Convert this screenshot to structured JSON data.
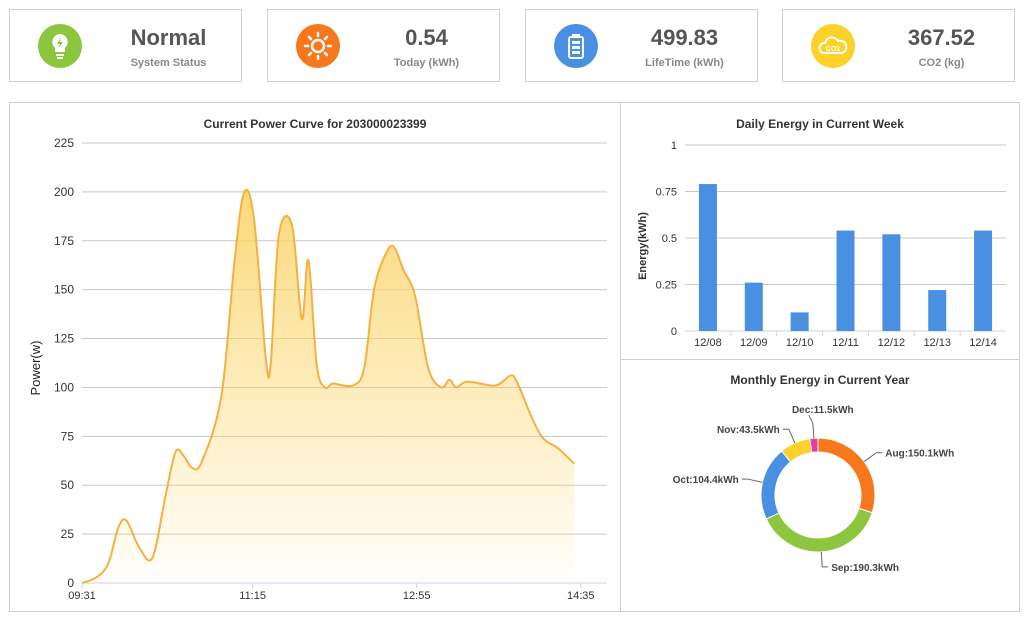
{
  "cards": [
    {
      "value": "Normal",
      "label": "System Status",
      "color": "#8cc63f",
      "icon": "lightbulb-icon"
    },
    {
      "value": "0.54",
      "label": "Today (kWh)",
      "color": "#f7771c",
      "icon": "sun-icon"
    },
    {
      "value": "499.83",
      "label": "LifeTime (kWh)",
      "color": "#4a90e2",
      "icon": "battery-icon"
    },
    {
      "value": "367.52",
      "label": "CO2 (kg)",
      "color": "#fcd12a",
      "icon": "co2-cloud-icon"
    }
  ],
  "power_chart": {
    "type": "area",
    "title": "Current Power Curve for 203000023399",
    "ylabel": "Power(w)",
    "ylim": [
      0,
      225
    ],
    "yticks": [
      0,
      25,
      50,
      75,
      100,
      125,
      150,
      175,
      200,
      225
    ],
    "xticks": [
      "09:31",
      "11:15",
      "12:55",
      "14:35"
    ],
    "xtick_minutes": [
      571,
      675,
      775,
      875
    ],
    "xlim_minutes": [
      571,
      891
    ],
    "color": "#f6b040",
    "points": [
      [
        571,
        0
      ],
      [
        580,
        3
      ],
      [
        587,
        10
      ],
      [
        593,
        28
      ],
      [
        598,
        32
      ],
      [
        606,
        18
      ],
      [
        614,
        13
      ],
      [
        622,
        45
      ],
      [
        628,
        67
      ],
      [
        633,
        65
      ],
      [
        638,
        59
      ],
      [
        644,
        62
      ],
      [
        656,
        96
      ],
      [
        664,
        165
      ],
      [
        670,
        200
      ],
      [
        676,
        185
      ],
      [
        683,
        115
      ],
      [
        686,
        112
      ],
      [
        691,
        178
      ],
      [
        699,
        183
      ],
      [
        705,
        135
      ],
      [
        709,
        165
      ],
      [
        714,
        112
      ],
      [
        719,
        100
      ],
      [
        724,
        102
      ],
      [
        736,
        101
      ],
      [
        743,
        110
      ],
      [
        749,
        150
      ],
      [
        756,
        168
      ],
      [
        761,
        172
      ],
      [
        767,
        160
      ],
      [
        774,
        147
      ],
      [
        782,
        110
      ],
      [
        790,
        100
      ],
      [
        795,
        104
      ],
      [
        799,
        100
      ],
      [
        806,
        103
      ],
      [
        823,
        101
      ],
      [
        832,
        106
      ],
      [
        836,
        103
      ],
      [
        845,
        85
      ],
      [
        852,
        74
      ],
      [
        861,
        69
      ],
      [
        871,
        61
      ]
    ]
  },
  "week_chart": {
    "type": "bar",
    "title": "Daily Energy in Current Week",
    "ylabel": "Energy(kWh)",
    "ylim": [
      0,
      1
    ],
    "yticks": [
      "0",
      "0.25",
      "0.5",
      "0.75",
      "1"
    ],
    "categories": [
      "12/08",
      "12/09",
      "12/10",
      "12/11",
      "12/12",
      "12/13",
      "12/14"
    ],
    "values": [
      0.79,
      0.26,
      0.1,
      0.54,
      0.52,
      0.22,
      0.54
    ],
    "color": "#4a90e2"
  },
  "month_chart": {
    "type": "pie",
    "title": "Monthly Energy in Current Year",
    "slices": [
      {
        "label": "Aug:150.1kWh",
        "value": 150.1,
        "color": "#f7771c"
      },
      {
        "label": "Sep:190.3kWh",
        "value": 190.3,
        "color": "#8cc63f"
      },
      {
        "label": "Oct:104.4kWh",
        "value": 104.4,
        "color": "#4a90e2"
      },
      {
        "label": "Nov:43.5kWh",
        "value": 43.5,
        "color": "#fcd12a"
      },
      {
        "label": "Dec:11.5kWh",
        "value": 11.5,
        "color": "#e63fa0"
      }
    ]
  }
}
